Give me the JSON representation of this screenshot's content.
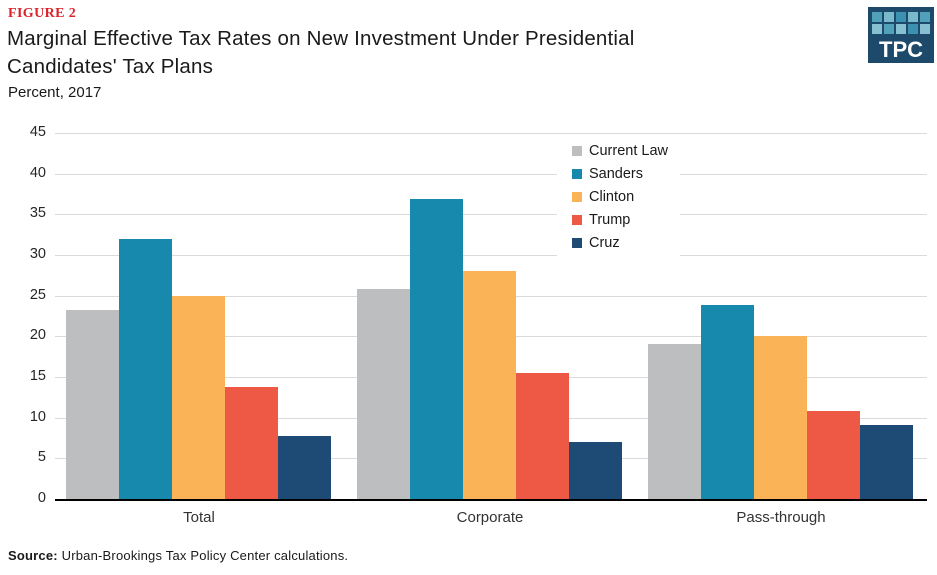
{
  "header": {
    "figure_label": "FIGURE 2",
    "figure_label_color": "#d9222a",
    "title_line1": "Marginal Effective Tax Rates on New Investment Under Presidential",
    "title_line2": "Candidates' Tax Plans",
    "subtitle": "Percent, 2017",
    "logo": {
      "text": "TPC",
      "bg": "#1d4a6b",
      "square_colors_row1": [
        "#52a1bb",
        "#79b9cc",
        "#3c91b1",
        "#79b9cc",
        "#52a1bb"
      ],
      "square_colors_row2": [
        "#86c0d1",
        "#52a1bb",
        "#86c0d1",
        "#3c91b1",
        "#86c0d1"
      ]
    }
  },
  "chart_data": {
    "type": "bar",
    "title": "Marginal Effective Tax Rates on New Investment Under Presidential Candidates' Tax Plans",
    "subtitle": "Percent, 2017",
    "xlabel": "",
    "ylabel": "Percent",
    "categories": [
      "Total",
      "Corporate",
      "Pass-through"
    ],
    "series": [
      {
        "name": "Current Law",
        "color": "#bdbec0",
        "values": [
          23.2,
          25.8,
          19.1
        ]
      },
      {
        "name": "Sanders",
        "color": "#1789ac",
        "values": [
          32.0,
          36.9,
          23.9
        ]
      },
      {
        "name": "Clinton",
        "color": "#fab457",
        "values": [
          25.0,
          28.0,
          20.0
        ]
      },
      {
        "name": "Trump",
        "color": "#ed5945",
        "values": [
          13.8,
          15.5,
          10.8
        ]
      },
      {
        "name": "Cruz",
        "color": "#1e4a76",
        "values": [
          7.8,
          7.0,
          9.1
        ]
      }
    ],
    "ylim": [
      0,
      45
    ],
    "ytick_step": 5,
    "yticks": [
      0,
      5,
      10,
      15,
      20,
      25,
      30,
      35,
      40,
      45
    ],
    "grid": true,
    "legend_position": "top-right-inside",
    "gridline_color": "#dadada",
    "axis_color": "#000000"
  },
  "footer": {
    "source_label": "Source:",
    "source_text": "Urban-Brookings Tax Policy Center calculations."
  }
}
